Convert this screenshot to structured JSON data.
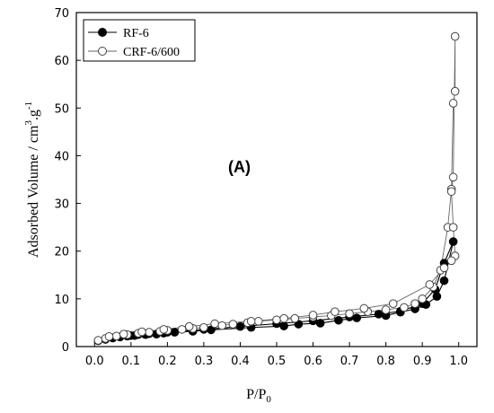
{
  "chart_data": {
    "type": "scatter",
    "annotation": "(A)",
    "xlabel": "P/P",
    "xlabel_sub": "0",
    "ylabel_parts": {
      "base": "Adsorbed Volume / cm",
      "sup": "3",
      "mid": ".g",
      "sup2": "-1"
    },
    "xlim": [
      -0.05,
      1.05
    ],
    "ylim": [
      0,
      70
    ],
    "xticks": [
      0.0,
      0.1,
      0.2,
      0.3,
      0.4,
      0.5,
      0.6,
      0.7,
      0.8,
      0.9,
      1.0
    ],
    "xtick_labels": [
      "0.0",
      "0.1",
      "0.2",
      "0.3",
      "0.4",
      "0.5",
      "0.6",
      "0.7",
      "0.8",
      "0.9",
      "1.0"
    ],
    "yticks": [
      0,
      10,
      20,
      30,
      40,
      50,
      60,
      70
    ],
    "ytick_labels": [
      "0",
      "10",
      "20",
      "30",
      "40",
      "50",
      "60",
      "70"
    ],
    "legend_position": "top-left",
    "series": [
      {
        "name": "RF-6",
        "marker": "filled-circle",
        "color": "#000000",
        "x": [
          0.01,
          0.03,
          0.05,
          0.07,
          0.09,
          0.11,
          0.14,
          0.17,
          0.19,
          0.22,
          0.27,
          0.32,
          0.43,
          0.52,
          0.56,
          0.62,
          0.67,
          0.72,
          0.8,
          0.84,
          0.88,
          0.91,
          0.94,
          0.96,
          0.985,
          0.96,
          0.935,
          0.9,
          0.84,
          0.78,
          0.7,
          0.6,
          0.5,
          0.4,
          0.3,
          0.2,
          0.15,
          0.12,
          0.1
        ],
        "y": [
          1.2,
          1.5,
          1.8,
          2.0,
          2.2,
          2.3,
          2.5,
          2.6,
          2.8,
          3.0,
          3.2,
          3.5,
          4.0,
          4.3,
          4.7,
          4.9,
          5.5,
          6.0,
          6.5,
          7.2,
          7.9,
          8.8,
          10.5,
          13.8,
          22.0,
          17.5,
          12.0,
          9.0,
          7.4,
          6.8,
          6.2,
          5.4,
          4.8,
          4.2,
          3.6,
          3.0,
          2.7,
          2.5,
          2.3
        ]
      },
      {
        "name": "CRF-6/600",
        "marker": "open-circle",
        "color": "#666666",
        "x": [
          0.01,
          0.03,
          0.06,
          0.09,
          0.12,
          0.15,
          0.18,
          0.2,
          0.24,
          0.27,
          0.3,
          0.35,
          0.38,
          0.42,
          0.45,
          0.5,
          0.55,
          0.6,
          0.65,
          0.7,
          0.75,
          0.8,
          0.85,
          0.88,
          0.9,
          0.93,
          0.95,
          0.97,
          0.98,
          0.985,
          0.99,
          0.99,
          0.985,
          0.98,
          0.985,
          0.99,
          0.98,
          0.96,
          0.92,
          0.82,
          0.74,
          0.66,
          0.6,
          0.52,
          0.43,
          0.33,
          0.26,
          0.19,
          0.13,
          0.08,
          0.04
        ],
        "y": [
          1.3,
          1.7,
          2.2,
          2.5,
          2.8,
          3.0,
          3.2,
          3.4,
          3.6,
          3.8,
          4.0,
          4.4,
          4.7,
          5.0,
          5.3,
          5.6,
          5.9,
          6.2,
          6.5,
          6.9,
          7.3,
          7.7,
          8.2,
          9.0,
          10.0,
          12.5,
          16.0,
          25.0,
          33.0,
          51.0,
          53.5,
          65.0,
          35.5,
          32.5,
          25.0,
          19.0,
          18.0,
          16.5,
          13.0,
          9.0,
          8.0,
          7.3,
          6.6,
          5.9,
          5.3,
          4.8,
          4.2,
          3.6,
          3.1,
          2.6,
          2.1
        ]
      }
    ]
  }
}
